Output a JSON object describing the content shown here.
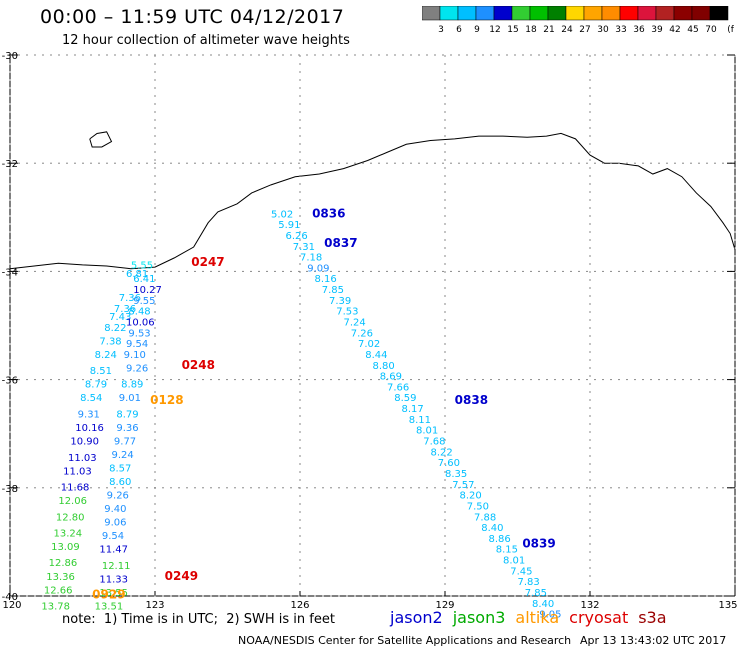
{
  "title": "00:00 – 11:59 UTC 04/12/2017",
  "subtitle": "12 hour collection of altimeter wave heights",
  "colorbar": {
    "unit": "(ft)",
    "colors": [
      "#808080",
      "#00e5ee",
      "#00bfff",
      "#1e90ff",
      "#0000cd",
      "#32cd32",
      "#00c000",
      "#008000",
      "#ffd700",
      "#ffa500",
      "#ff8c00",
      "#ff0000",
      "#dc143c",
      "#b22222",
      "#8b0000",
      "#800000",
      "#000000"
    ],
    "labels": [
      "3",
      "6",
      "9",
      "12",
      "15",
      "18",
      "21",
      "24",
      "27",
      "30",
      "33",
      "36",
      "39",
      "42",
      "45",
      "70"
    ]
  },
  "axes": {
    "lon_ticks": [
      "120",
      "123",
      "126",
      "129",
      "132",
      "135"
    ],
    "lat_ticks": [
      "-30",
      "-32",
      "-34",
      "-36",
      "-38",
      "-40"
    ]
  },
  "tracks": [
    {
      "satellite": "jason2",
      "color": "#0000cc",
      "pass_labels": [
        {
          "text": "0836",
          "lon": 126.25,
          "lat": -33.0
        },
        {
          "text": "0837",
          "lon": 126.5,
          "lat": -33.55
        },
        {
          "text": "0838",
          "lon": 129.2,
          "lat": -36.45
        },
        {
          "text": "0839",
          "lon": 130.6,
          "lat": -39.1
        }
      ]
    },
    {
      "satellite": "cryosat",
      "color": "#dd0000",
      "pass_labels": [
        {
          "text": "0247",
          "lon": 123.75,
          "lat": -33.9
        },
        {
          "text": "0248",
          "lon": 123.55,
          "lat": -35.8
        },
        {
          "text": "0249",
          "lon": 123.2,
          "lat": -39.7
        }
      ]
    },
    {
      "satellite": "altika",
      "color": "#ff9900",
      "pass_labels": [
        {
          "text": "0128",
          "lon": 122.9,
          "lat": -36.45
        },
        {
          "text": "0929",
          "lon": 121.7,
          "lat": -40.05
        }
      ]
    }
  ],
  "observations": [
    {
      "v": "5.02",
      "lon": 125.4,
      "lat": -33.0,
      "c": "#00bfff"
    },
    {
      "v": "5.91",
      "lon": 125.55,
      "lat": -33.2,
      "c": "#00bfff"
    },
    {
      "v": "6.26",
      "lon": 125.7,
      "lat": -33.4,
      "c": "#00bfff"
    },
    {
      "v": "7.31",
      "lon": 125.85,
      "lat": -33.6,
      "c": "#00bfff"
    },
    {
      "v": "7.18",
      "lon": 126.0,
      "lat": -33.8,
      "c": "#00bfff"
    },
    {
      "v": "9.09",
      "lon": 126.15,
      "lat": -34.0,
      "c": "#1e90ff"
    },
    {
      "v": "8.16",
      "lon": 126.3,
      "lat": -34.2,
      "c": "#00bfff"
    },
    {
      "v": "7.85",
      "lon": 126.45,
      "lat": -34.4,
      "c": "#00bfff"
    },
    {
      "v": "7.39",
      "lon": 126.6,
      "lat": -34.6,
      "c": "#00bfff"
    },
    {
      "v": "7.53",
      "lon": 126.75,
      "lat": -34.8,
      "c": "#00bfff"
    },
    {
      "v": "7.24",
      "lon": 126.9,
      "lat": -35.0,
      "c": "#00bfff"
    },
    {
      "v": "7.26",
      "lon": 127.05,
      "lat": -35.2,
      "c": "#00bfff"
    },
    {
      "v": "7.02",
      "lon": 127.2,
      "lat": -35.4,
      "c": "#00bfff"
    },
    {
      "v": "8.44",
      "lon": 127.35,
      "lat": -35.6,
      "c": "#00bfff"
    },
    {
      "v": "8.80",
      "lon": 127.5,
      "lat": -35.8,
      "c": "#00bfff"
    },
    {
      "v": "8.69",
      "lon": 127.65,
      "lat": -36.0,
      "c": "#00bfff"
    },
    {
      "v": "7.66",
      "lon": 127.8,
      "lat": -36.2,
      "c": "#00bfff"
    },
    {
      "v": "8.59",
      "lon": 127.95,
      "lat": -36.4,
      "c": "#00bfff"
    },
    {
      "v": "8.17",
      "lon": 128.1,
      "lat": -36.6,
      "c": "#00bfff"
    },
    {
      "v": "8.11",
      "lon": 128.25,
      "lat": -36.8,
      "c": "#00bfff"
    },
    {
      "v": "8.01",
      "lon": 128.4,
      "lat": -37.0,
      "c": "#00bfff"
    },
    {
      "v": "7.68",
      "lon": 128.55,
      "lat": -37.2,
      "c": "#00bfff"
    },
    {
      "v": "8.22",
      "lon": 128.7,
      "lat": -37.4,
      "c": "#00bfff"
    },
    {
      "v": "7.60",
      "lon": 128.85,
      "lat": -37.6,
      "c": "#00bfff"
    },
    {
      "v": "8.35",
      "lon": 129.0,
      "lat": -37.8,
      "c": "#00bfff"
    },
    {
      "v": "7.57",
      "lon": 129.15,
      "lat": -38.0,
      "c": "#00bfff"
    },
    {
      "v": "8.20",
      "lon": 129.3,
      "lat": -38.2,
      "c": "#00bfff"
    },
    {
      "v": "7.50",
      "lon": 129.45,
      "lat": -38.4,
      "c": "#00bfff"
    },
    {
      "v": "7.88",
      "lon": 129.6,
      "lat": -38.6,
      "c": "#00bfff"
    },
    {
      "v": "8.40",
      "lon": 129.75,
      "lat": -38.8,
      "c": "#00bfff"
    },
    {
      "v": "8.86",
      "lon": 129.9,
      "lat": -39.0,
      "c": "#00bfff"
    },
    {
      "v": "8.15",
      "lon": 130.05,
      "lat": -39.2,
      "c": "#00bfff"
    },
    {
      "v": "8.01",
      "lon": 130.2,
      "lat": -39.4,
      "c": "#00bfff"
    },
    {
      "v": "7.45",
      "lon": 130.35,
      "lat": -39.6,
      "c": "#00bfff"
    },
    {
      "v": "7.83",
      "lon": 130.5,
      "lat": -39.8,
      "c": "#00bfff"
    },
    {
      "v": "7.85",
      "lon": 130.65,
      "lat": -40.0,
      "c": "#00bfff"
    },
    {
      "v": "8.40",
      "lon": 130.8,
      "lat": -40.2,
      "c": "#00bfff"
    },
    {
      "v": "9.05",
      "lon": 130.95,
      "lat": -40.4,
      "c": "#1e90ff"
    },
    {
      "v": "5.55",
      "lon": 122.5,
      "lat": -33.95,
      "c": "#00e5ee"
    },
    {
      "v": "6.81",
      "lon": 122.4,
      "lat": -34.1,
      "c": "#00bfff"
    },
    {
      "v": "6.41",
      "lon": 122.55,
      "lat": -34.2,
      "c": "#00bfff"
    },
    {
      "v": "10.27",
      "lon": 122.55,
      "lat": -34.4,
      "c": "#0000cd"
    },
    {
      "v": "7.36",
      "lon": 122.25,
      "lat": -34.55,
      "c": "#00bfff"
    },
    {
      "v": "9.55",
      "lon": 122.55,
      "lat": -34.6,
      "c": "#1e90ff"
    },
    {
      "v": "7.36",
      "lon": 122.15,
      "lat": -34.75,
      "c": "#00bfff"
    },
    {
      "v": "8.48",
      "lon": 122.45,
      "lat": -34.8,
      "c": "#00bfff"
    },
    {
      "v": "7.43",
      "lon": 122.05,
      "lat": -34.9,
      "c": "#00bfff"
    },
    {
      "v": "10.06",
      "lon": 122.4,
      "lat": -35.0,
      "c": "#0000cd"
    },
    {
      "v": "8.22",
      "lon": 121.95,
      "lat": -35.1,
      "c": "#00bfff"
    },
    {
      "v": "9.53",
      "lon": 122.45,
      "lat": -35.2,
      "c": "#1e90ff"
    },
    {
      "v": "7.38",
      "lon": 121.85,
      "lat": -35.35,
      "c": "#00bfff"
    },
    {
      "v": "9.54",
      "lon": 122.4,
      "lat": -35.4,
      "c": "#1e90ff"
    },
    {
      "v": "8.24",
      "lon": 121.75,
      "lat": -35.6,
      "c": "#00bfff"
    },
    {
      "v": "9.10",
      "lon": 122.35,
      "lat": -35.6,
      "c": "#1e90ff"
    },
    {
      "v": "9.26",
      "lon": 122.4,
      "lat": -35.85,
      "c": "#1e90ff"
    },
    {
      "v": "8.51",
      "lon": 121.65,
      "lat": -35.9,
      "c": "#00bfff"
    },
    {
      "v": "8.79",
      "lon": 121.55,
      "lat": -36.15,
      "c": "#00bfff"
    },
    {
      "v": "8.89",
      "lon": 122.3,
      "lat": -36.15,
      "c": "#00bfff"
    },
    {
      "v": "8.54",
      "lon": 121.45,
      "lat": -36.4,
      "c": "#00bfff"
    },
    {
      "v": "9.01",
      "lon": 122.25,
      "lat": -36.4,
      "c": "#1e90ff"
    },
    {
      "v": "9.31",
      "lon": 121.4,
      "lat": -36.7,
      "c": "#1e90ff"
    },
    {
      "v": "8.79",
      "lon": 122.2,
      "lat": -36.7,
      "c": "#00bfff"
    },
    {
      "v": "10.16",
      "lon": 121.35,
      "lat": -36.95,
      "c": "#0000cd"
    },
    {
      "v": "9.36",
      "lon": 122.2,
      "lat": -36.95,
      "c": "#1e90ff"
    },
    {
      "v": "10.90",
      "lon": 121.25,
      "lat": -37.2,
      "c": "#0000cd"
    },
    {
      "v": "9.77",
      "lon": 122.15,
      "lat": -37.2,
      "c": "#1e90ff"
    },
    {
      "v": "11.03",
      "lon": 121.2,
      "lat": -37.5,
      "c": "#0000cd"
    },
    {
      "v": "9.24",
      "lon": 122.1,
      "lat": -37.45,
      "c": "#1e90ff"
    },
    {
      "v": "11.03",
      "lon": 121.1,
      "lat": -37.75,
      "c": "#0000cd"
    },
    {
      "v": "8.57",
      "lon": 122.05,
      "lat": -37.7,
      "c": "#00bfff"
    },
    {
      "v": "8.60",
      "lon": 122.05,
      "lat": -37.95,
      "c": "#00bfff"
    },
    {
      "v": "11.68",
      "lon": 121.05,
      "lat": -38.05,
      "c": "#0000cd"
    },
    {
      "v": "9.26",
      "lon": 122.0,
      "lat": -38.2,
      "c": "#1e90ff"
    },
    {
      "v": "12.06",
      "lon": 121.0,
      "lat": -38.3,
      "c": "#32cd32"
    },
    {
      "v": "9.40",
      "lon": 121.95,
      "lat": -38.45,
      "c": "#1e90ff"
    },
    {
      "v": "12.80",
      "lon": 120.95,
      "lat": -38.6,
      "c": "#32cd32"
    },
    {
      "v": "9.06",
      "lon": 121.95,
      "lat": -38.7,
      "c": "#1e90ff"
    },
    {
      "v": "13.24",
      "lon": 120.9,
      "lat": -38.9,
      "c": "#32cd32"
    },
    {
      "v": "9.54",
      "lon": 121.9,
      "lat": -38.95,
      "c": "#1e90ff"
    },
    {
      "v": "13.09",
      "lon": 120.85,
      "lat": -39.15,
      "c": "#32cd32"
    },
    {
      "v": "11.47",
      "lon": 121.85,
      "lat": -39.2,
      "c": "#0000cd"
    },
    {
      "v": "12.86",
      "lon": 120.8,
      "lat": -39.45,
      "c": "#32cd32"
    },
    {
      "v": "12.11",
      "lon": 121.9,
      "lat": -39.5,
      "c": "#32cd32"
    },
    {
      "v": "13.36",
      "lon": 120.75,
      "lat": -39.7,
      "c": "#32cd32"
    },
    {
      "v": "11.33",
      "lon": 121.85,
      "lat": -39.75,
      "c": "#0000cd"
    },
    {
      "v": "12.66",
      "lon": 120.7,
      "lat": -39.95,
      "c": "#32cd32"
    },
    {
      "v": "13.55",
      "lon": 121.85,
      "lat": -40.0,
      "c": "#32cd32"
    },
    {
      "v": "13.78",
      "lon": 120.65,
      "lat": -40.25,
      "c": "#32cd32"
    },
    {
      "v": "13.51",
      "lon": 121.75,
      "lat": -40.25,
      "c": "#32cd32"
    }
  ],
  "note": "note:  1) Time is in UTC;  2) SWH is in feet",
  "legend": [
    {
      "name": "jason2",
      "color": "#0000cc"
    },
    {
      "name": "jason3",
      "color": "#00aa00"
    },
    {
      "name": "altika",
      "color": "#ff9900"
    },
    {
      "name": "cryosat",
      "color": "#dd0000"
    },
    {
      "name": "s3a",
      "color": "#990000"
    }
  ],
  "footer": {
    "credit": "NOAA/NESDIS Center for Satellite Applications and Research",
    "timestamp": "Apr 13 13:43:02 UTC 2017"
  }
}
